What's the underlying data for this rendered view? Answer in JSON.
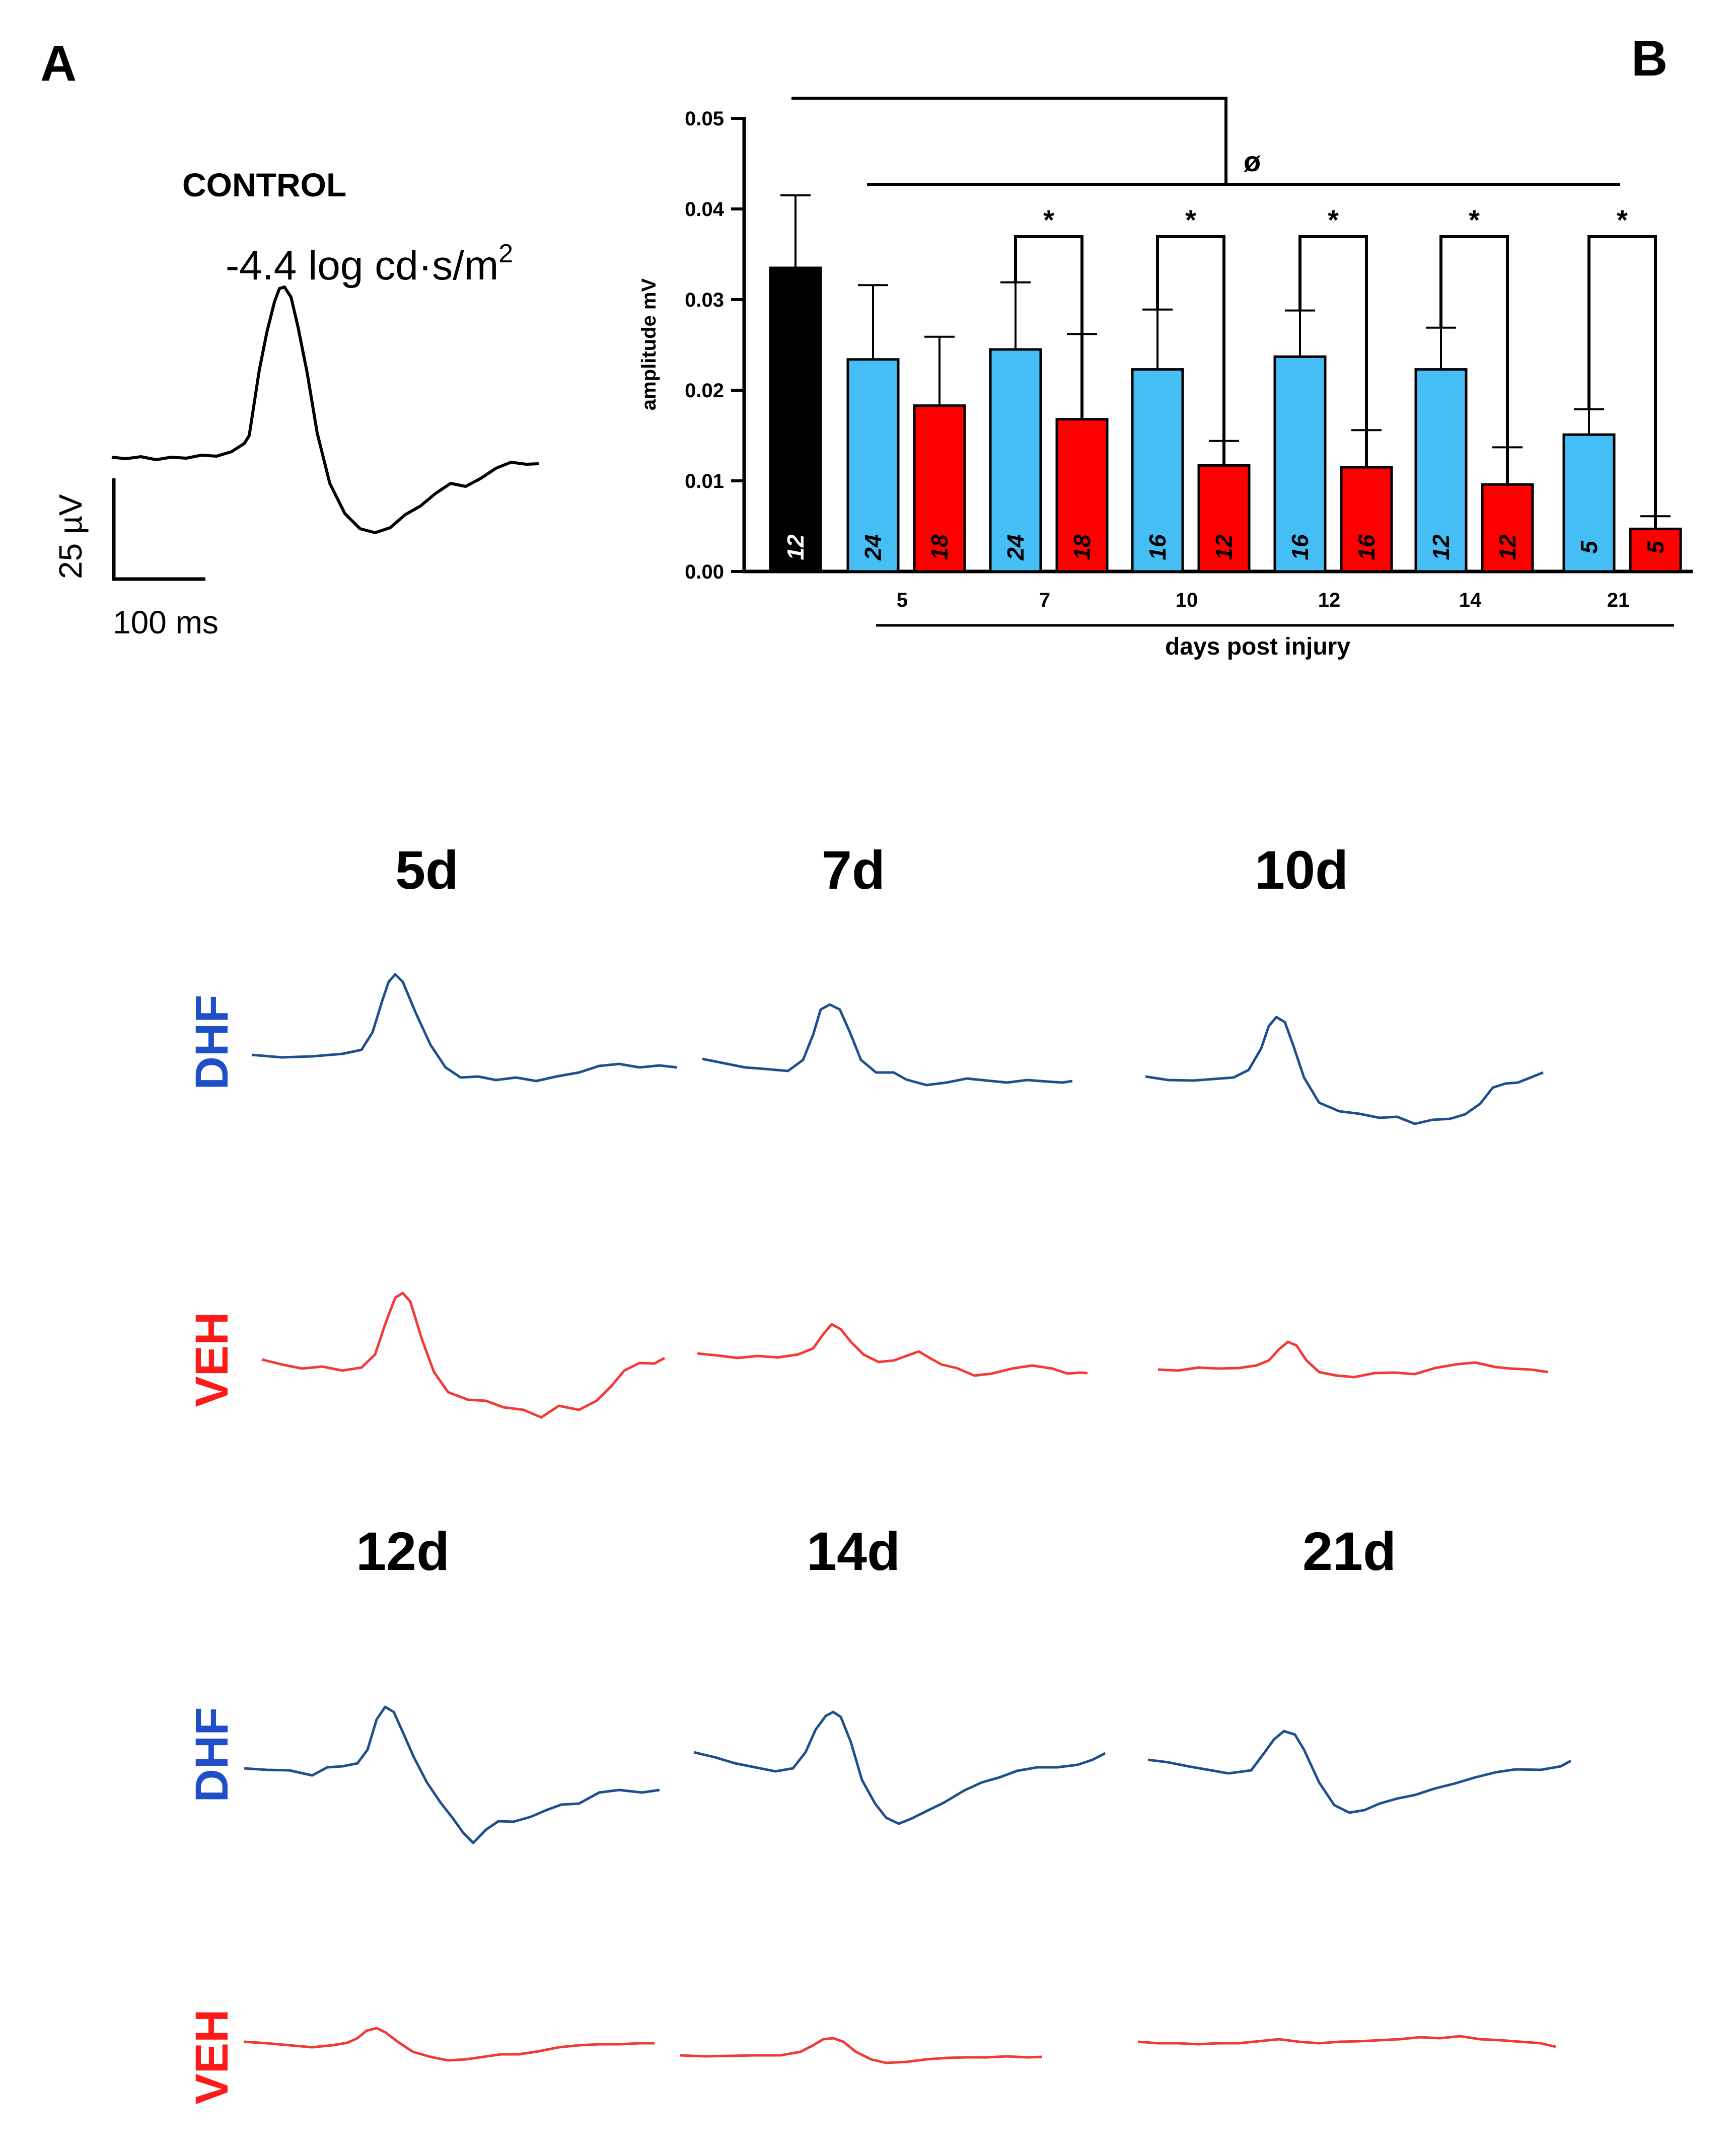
{
  "panels": {
    "a": "A",
    "b": "B"
  },
  "control": {
    "title": "CONTROL",
    "flash_prefix": "-4.4 log cd·s/m",
    "flash_sup": "2",
    "scale_y": "25 µV",
    "scale_x": "100 ms"
  },
  "groups": {
    "dhf": "DHF",
    "veh": "VEH"
  },
  "colors": {
    "control": "#000000",
    "dhf": "#45BDF5",
    "veh": "#FF0000",
    "dhf_trace": "#1D4F8C",
    "veh_trace": "#F23A35",
    "dhf_label": "#1F4FC8",
    "veh_label": "#FF1A1A"
  },
  "trace_days": [
    "5d",
    "7d",
    "10d",
    "12d",
    "14d",
    "21d"
  ],
  "chart_data": {
    "type": "bar",
    "ylabel": "amplitude mV",
    "xlabel": "days post injury",
    "ylim": [
      0,
      0.05
    ],
    "yticks": [
      "0.00",
      "0.01",
      "0.02",
      "0.03",
      "0.04",
      "0.05"
    ],
    "control": {
      "value": 0.0335,
      "error": 0.008,
      "n": "12"
    },
    "categories": [
      "5",
      "7",
      "10",
      "12",
      "14",
      "21"
    ],
    "series": [
      {
        "key": "dhf",
        "values": [
          0.0234,
          0.0245,
          0.0223,
          0.0237,
          0.0223,
          0.0151
        ],
        "errors": [
          0.0082,
          0.0074,
          0.0066,
          0.0051,
          0.0046,
          0.0028
        ],
        "n": [
          "24",
          "24",
          "16",
          "16",
          "12",
          "5"
        ]
      },
      {
        "key": "veh",
        "values": [
          0.0183,
          0.0168,
          0.0117,
          0.0115,
          0.0096,
          0.0047
        ],
        "errors": [
          0.0076,
          0.0094,
          0.0027,
          0.0041,
          0.0041,
          0.0014
        ],
        "n": [
          "18",
          "18",
          "12",
          "16",
          "12",
          "5"
        ]
      }
    ],
    "significance": {
      "pairwise": "*",
      "pairwise_days": [
        "7",
        "10",
        "12",
        "14",
        "21"
      ],
      "control_vs_all": "ø"
    }
  }
}
